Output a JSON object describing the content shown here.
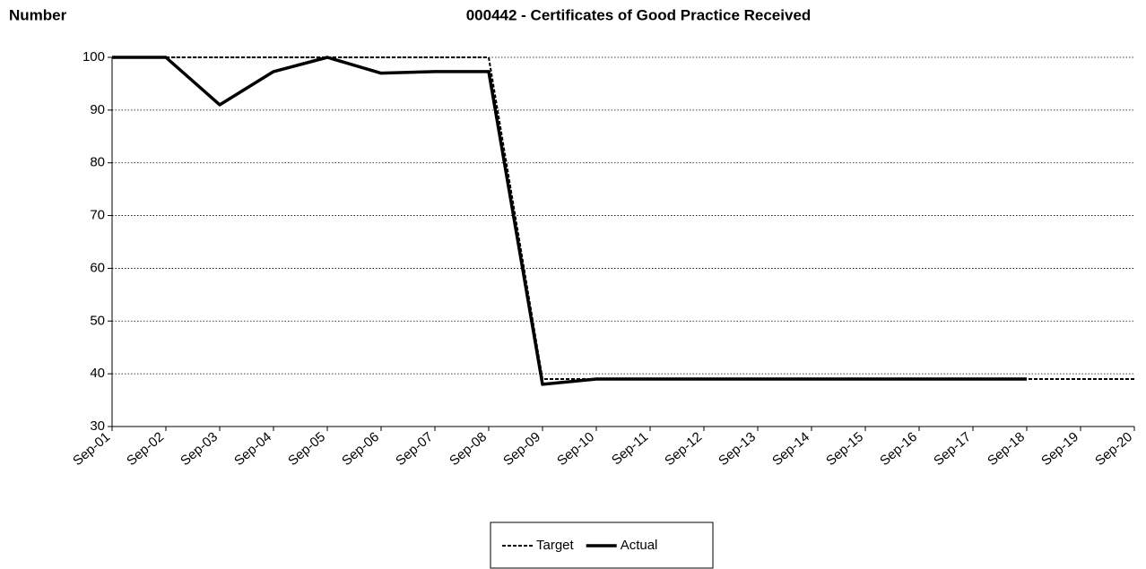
{
  "chart_data": {
    "type": "line",
    "title": "000442 - Certificates of Good Practice Received",
    "y_label": "Number",
    "categories": [
      "Sep-01",
      "Sep-02",
      "Sep-03",
      "Sep-04",
      "Sep-05",
      "Sep-06",
      "Sep-07",
      "Sep-08",
      "Sep-09",
      "Sep-10",
      "Sep-11",
      "Sep-12",
      "Sep-13",
      "Sep-14",
      "Sep-15",
      "Sep-16",
      "Sep-17",
      "Sep-18",
      "Sep-19",
      "Sep-20"
    ],
    "series": [
      {
        "name": "Target",
        "color": "#000000",
        "dash": true,
        "values": [
          100,
          100,
          100,
          100,
          100,
          100,
          100,
          100,
          39,
          39,
          39,
          39,
          39,
          39,
          39,
          39,
          39,
          39,
          39,
          39
        ]
      },
      {
        "name": "Actual",
        "color": "#000000",
        "dash": false,
        "values": [
          100,
          100,
          91,
          97.3,
          100,
          97,
          97.3,
          97.3,
          38,
          39,
          39,
          39,
          39,
          39,
          39,
          39,
          39,
          39,
          null,
          null
        ]
      }
    ],
    "ylim": [
      30,
      100
    ],
    "yticks": [
      30,
      40,
      50,
      60,
      70,
      80,
      90,
      100
    ],
    "grid": true
  }
}
